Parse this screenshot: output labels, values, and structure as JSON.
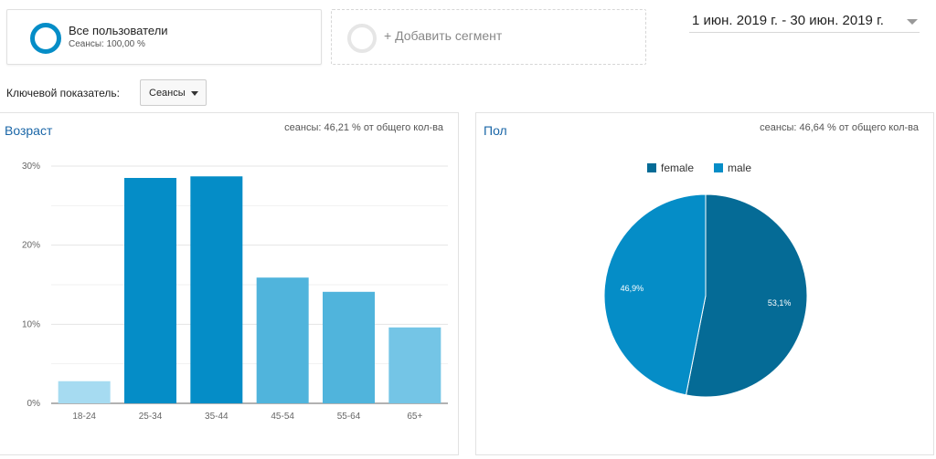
{
  "segment": {
    "title": "Все пользователи",
    "subtitle": "Сеансы: 100,00 %",
    "color": "#058dc7"
  },
  "add_segment": {
    "label": "+ Добавить сегмент"
  },
  "date_range": {
    "label": "1 июн. 2019 г. - 30 июн. 2019 г."
  },
  "metric": {
    "label": "Ключевой показатель:",
    "selected": "Сеансы"
  },
  "age_panel": {
    "title": "Возраст",
    "note": "сеансы: 46,21 % от общего кол-ва",
    "chart_data": {
      "type": "bar",
      "categories": [
        "18-24",
        "25-34",
        "35-44",
        "45-54",
        "55-64",
        "65+"
      ],
      "values": [
        2.8,
        28.5,
        28.7,
        15.9,
        14.1,
        9.6
      ],
      "colors": [
        "#a6dbf1",
        "#058dc7",
        "#058dc7",
        "#50b4dc",
        "#50b4dc",
        "#74c5e6"
      ],
      "ylim": [
        0,
        30
      ],
      "yticks": [
        0,
        10,
        20,
        30
      ],
      "ytick_labels": [
        "0%",
        "10%",
        "20%",
        "30%"
      ],
      "grid": true
    }
  },
  "gender_panel": {
    "title": "Пол",
    "note": "сеансы: 46,64 % от общего кол-ва",
    "chart_data": {
      "type": "pie",
      "legend_position": "top",
      "slices": [
        {
          "name": "female",
          "value": 53.1,
          "label": "53,1%",
          "color": "#056b96"
        },
        {
          "name": "male",
          "value": 46.9,
          "label": "46,9%",
          "color": "#058dc7"
        }
      ]
    }
  }
}
